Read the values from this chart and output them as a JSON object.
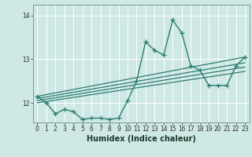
{
  "title": "",
  "xlabel": "Humidex (Indice chaleur)",
  "bg_color": "#cde8e5",
  "line_color": "#2e7d6e",
  "grid_color": "#ffffff",
  "ylim": [
    11.55,
    14.25
  ],
  "xlim": [
    -0.5,
    23.5
  ],
  "yticks": [
    12,
    13,
    14
  ],
  "xticks": [
    0,
    1,
    2,
    3,
    4,
    5,
    6,
    7,
    8,
    9,
    10,
    11,
    12,
    13,
    14,
    15,
    16,
    17,
    18,
    19,
    20,
    21,
    22,
    23
  ],
  "xtick_labels": [
    "0",
    "1",
    "2",
    "3",
    "4",
    "5",
    "6",
    "7",
    "8",
    "9",
    "10",
    "11",
    "12",
    "13",
    "14",
    "15",
    "16",
    "17",
    "18",
    "19",
    "20",
    "21",
    "22",
    "23"
  ],
  "data_x": [
    0,
    1,
    2,
    3,
    4,
    5,
    6,
    7,
    8,
    9,
    10,
    11,
    12,
    13,
    14,
    15,
    16,
    17,
    18,
    19,
    20,
    21,
    22,
    23
  ],
  "data_y": [
    12.15,
    12.0,
    11.75,
    11.85,
    11.8,
    11.62,
    11.65,
    11.65,
    11.62,
    11.65,
    12.05,
    12.5,
    13.4,
    13.2,
    13.1,
    13.9,
    13.6,
    12.85,
    12.75,
    12.4,
    12.4,
    12.4,
    12.85,
    13.05
  ],
  "reg_lines": [
    {
      "x0": 0,
      "y0": 12.0,
      "x1": 23,
      "y1": 12.72
    },
    {
      "x0": 0,
      "y0": 12.05,
      "x1": 23,
      "y1": 12.82
    },
    {
      "x0": 0,
      "y0": 12.1,
      "x1": 23,
      "y1": 12.92
    },
    {
      "x0": 0,
      "y0": 12.15,
      "x1": 23,
      "y1": 13.05
    }
  ],
  "marker": "+",
  "markersize": 4,
  "linewidth": 1.0,
  "reg_linewidth": 0.9,
  "tick_fontsize": 5.5,
  "label_fontsize": 7.0
}
